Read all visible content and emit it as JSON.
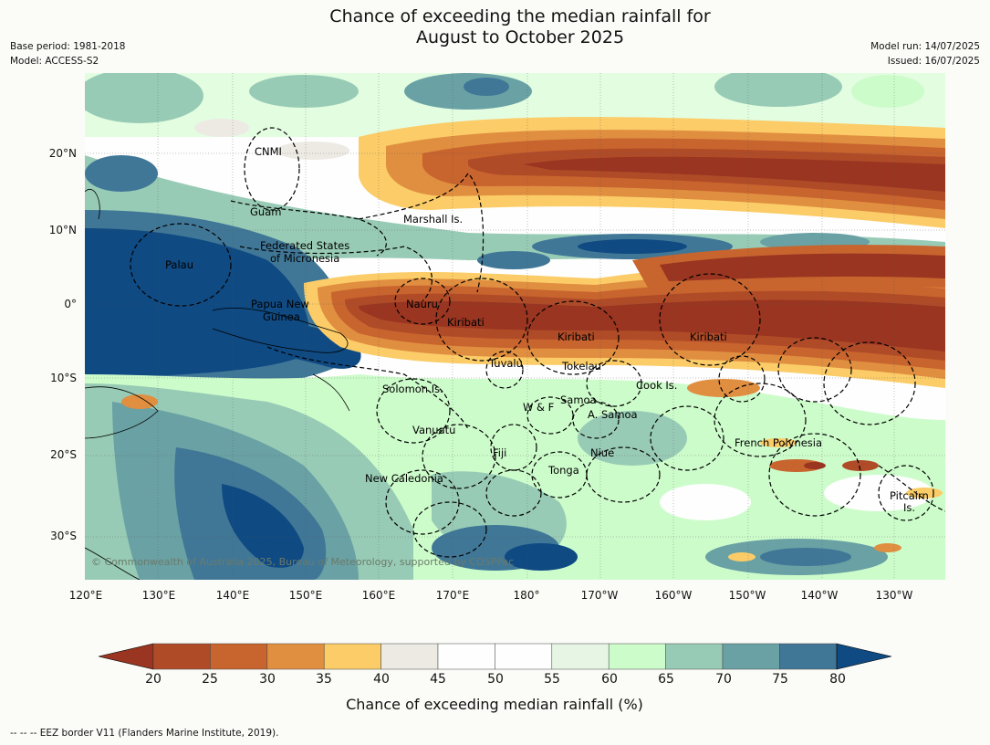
{
  "title": {
    "line1": "Chance of exceeding the median rainfall for",
    "line2": "August to October 2025"
  },
  "meta_left": {
    "base_period": "Base period: 1981-2018",
    "model": "Model: ACCESS-S2"
  },
  "meta_right": {
    "model_run": "Model run: 14/07/2025",
    "issued": "Issued: 16/07/2025"
  },
  "map": {
    "lat_labels": [
      "20°N",
      "10°N",
      "0°",
      "10°S",
      "20°S",
      "30°S"
    ],
    "lon_labels": [
      "120°E",
      "130°E",
      "140°E",
      "150°E",
      "160°E",
      "170°E",
      "180°",
      "170°W",
      "160°W",
      "150°W",
      "140°W",
      "130°W"
    ],
    "regions": [
      "CNMI",
      "Guam",
      "Marshall Is.",
      "Federated States",
      "of Micronesia",
      "Palau",
      "Papua New",
      "Guinea",
      "Nauru",
      "Kiribati",
      "Kiribati",
      "Kiribati",
      "Tuvalu",
      "Tokelau",
      "Solomon Is.",
      "Cook Is.",
      "W & F",
      "Samoa",
      "A. Samoa",
      "Vanuatu",
      "French Polynesia",
      "Fiji",
      "Niue",
      "Tonga",
      "New Caledonia",
      "Pitcairn",
      "Is."
    ],
    "copyright": "© Commonwealth of Australia 2025, Bureau of Meteorology, supported by COSPPac"
  },
  "colorbar": {
    "ticks": [
      "20",
      "25",
      "30",
      "35",
      "40",
      "45",
      "50",
      "55",
      "60",
      "65",
      "70",
      "75",
      "80"
    ],
    "colors": {
      "lt20": "#993520",
      "c20": "#b04b28",
      "c25": "#c8642e",
      "c30": "#e08e40",
      "c35": "#fbcc67",
      "c40": "#edeae4",
      "c45": "#fdfefd",
      "c50": "#fdfefd",
      "c55": "#e6f5e4",
      "c60": "#cdfccb",
      "c65": "#98cbb5",
      "c70": "#6aa1a4",
      "c75": "#407797",
      "gt80": "#0f4a82"
    },
    "label": "Chance of exceeding median rainfall (%)"
  },
  "footnote": "--  --  -- EEZ border V11 (Flanders Marine Institute, 2019)."
}
